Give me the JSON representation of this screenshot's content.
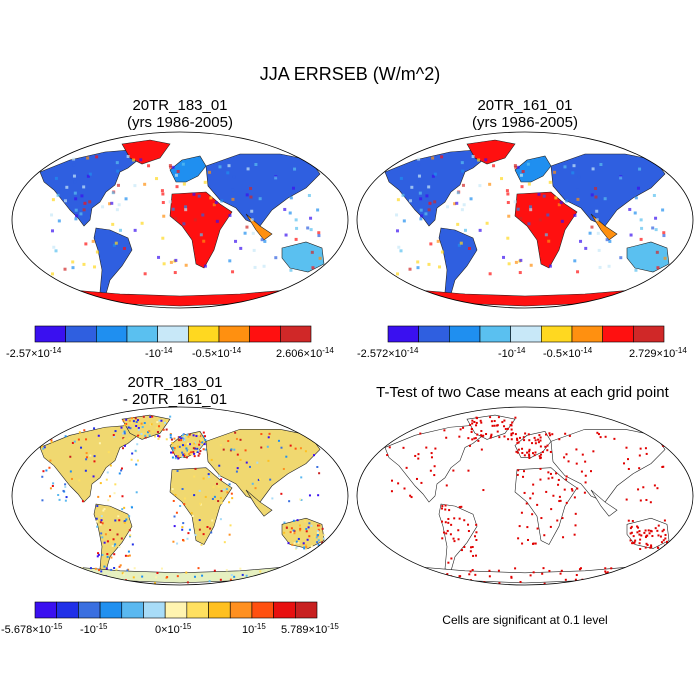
{
  "figure": {
    "title": "JJA ERRSEB (W/m^2)"
  },
  "panels": [
    {
      "id": "case1",
      "title_line1": "20TR_183_01",
      "title_line2": "(yrs 1986-2005)",
      "palette": [
        "#3a10f0",
        "#2f5fe0",
        "#1f8ff0",
        "#5ac0f0",
        "#c8e8f8",
        "#ffd820",
        "#ff9010",
        "#ff1010",
        "#d02828"
      ],
      "ticks": {
        "min": {
          "mant": "-2.57",
          "exp": "-14"
        },
        "t1": {
          "mant": "-10",
          "exp": "-14"
        },
        "t2": {
          "mant": "-0.5",
          "exp": "-14"
        },
        "max": {
          "mant": "2.606",
          "exp": "-14"
        }
      }
    },
    {
      "id": "case2",
      "title_line1": "20TR_161_01",
      "title_line2": "(yrs 1986-2005)",
      "palette": [
        "#3a10f0",
        "#2f5fe0",
        "#1f8ff0",
        "#5ac0f0",
        "#c8e8f8",
        "#ffd820",
        "#ff9010",
        "#ff1010",
        "#d02828"
      ],
      "ticks": {
        "min": {
          "mant": "-2.572",
          "exp": "-14"
        },
        "t1": {
          "mant": "-10",
          "exp": "-14"
        },
        "t2": {
          "mant": "-0.5",
          "exp": "-14"
        },
        "max": {
          "mant": "2.729",
          "exp": "-14"
        }
      }
    },
    {
      "id": "diff",
      "title_line1": "20TR_183_01",
      "title_line2": "- 20TR_161_01",
      "palette": [
        "#3a10f0",
        "#2030e8",
        "#3a6fe0",
        "#2090f0",
        "#5ab8f0",
        "#a8dcf8",
        "#fff4b0",
        "#ffe060",
        "#ffc020",
        "#ff9020",
        "#ff5010",
        "#e81010",
        "#c82020"
      ],
      "ticks": {
        "min": {
          "mant": "-5.678",
          "exp": "-15"
        },
        "t1": {
          "mant": "-10",
          "exp": "-15"
        },
        "t2": {
          "mant": "0",
          "exp": "-15"
        },
        "t3": {
          "mant": "10",
          "exp": "-15"
        },
        "max": {
          "mant": "5.789",
          "exp": "-15"
        }
      }
    },
    {
      "id": "ttest",
      "title": "T-Test of two Case means at each grid point",
      "note": "Cells are significant at 0.1 level",
      "dot_color": "#e00000"
    }
  ],
  "colors": {
    "outline": "#000000",
    "land_outline": "#222222"
  }
}
